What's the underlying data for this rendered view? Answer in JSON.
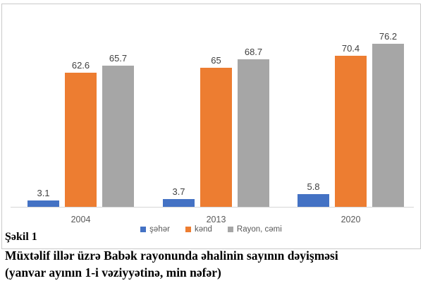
{
  "caption": {
    "figure_label": "Şəkil 1",
    "title_line1": "Müxtəlif illər üzrə Babək rayonunda əhalinin sayının dəyişməsi",
    "title_line2": "(yanvar ayının 1-i vəziyyətinə, min nəfər)"
  },
  "chart_data": {
    "type": "bar",
    "title": "",
    "xlabel": "",
    "ylabel": "",
    "categories": [
      "2004",
      "2013",
      "2020"
    ],
    "series": [
      {
        "name": "şəhər",
        "color": "#4472C4",
        "values": [
          3.1,
          3.7,
          5.8
        ],
        "labels": [
          "3.1",
          "3.7",
          "5.8"
        ]
      },
      {
        "name": "kənd",
        "color": "#ED7D31",
        "values": [
          62.6,
          65,
          70.4
        ],
        "labels": [
          "62.6",
          "65",
          "70.4"
        ]
      },
      {
        "name": "Rayon, cəmi",
        "color": "#A6A6A6",
        "values": [
          65.7,
          68.7,
          76.2
        ],
        "labels": [
          "65.7",
          "68.7",
          "76.2"
        ]
      }
    ],
    "ylim": [
      0,
      80
    ],
    "grid": false,
    "axis_visible": false,
    "legend_position": "bottom",
    "data_labels": true
  },
  "style_colors": {
    "axis_line": "#d6d6d6",
    "frame_border": "#c9c9c9",
    "value_label": "#404040",
    "tick_label": "#595959",
    "legend_label": "#595959"
  }
}
